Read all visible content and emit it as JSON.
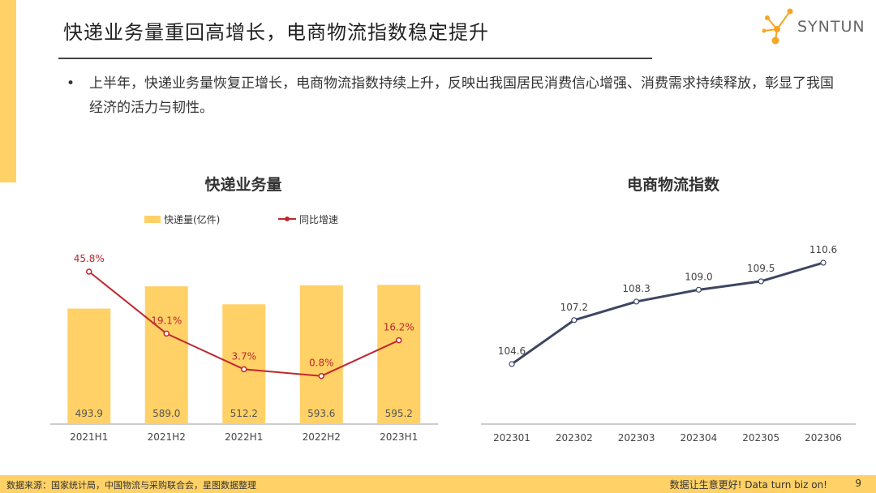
{
  "header": {
    "title": "快递业务量重回高增长，电商物流指数稳定提升",
    "logo_text": "SYNTUN"
  },
  "bullet": {
    "dot": "•",
    "text": "上半年，快递业务量恢复正增长，电商物流指数持续上升，反映出我国居民消费信心增强、消费需求持续释放，彰显了我国经济的活力与韧性。"
  },
  "colors": {
    "accent": "#FFD166",
    "bar": "#FFD166",
    "line_red": "#C0272D",
    "line_navy": "#3D4563"
  },
  "chart_data": [
    {
      "type": "bar",
      "title": "快递业务量",
      "categories": [
        "2021H1",
        "2021H2",
        "2022H1",
        "2022H2",
        "2023H1"
      ],
      "legend_position": "top",
      "series": [
        {
          "name": "快递量(亿件)",
          "type": "bar",
          "values": [
            493.9,
            589.0,
            512.2,
            593.6,
            595.2
          ],
          "labels": [
            "493.9",
            "589.0",
            "512.2",
            "593.6",
            "595.2"
          ]
        },
        {
          "name": "同比增速",
          "type": "line",
          "values": [
            45.8,
            19.1,
            3.7,
            0.8,
            16.2
          ],
          "labels": [
            "45.8%",
            "19.1%",
            "3.7%",
            "0.8%",
            "16.2%"
          ]
        }
      ],
      "grid": false
    },
    {
      "type": "line",
      "title": "电商物流指数",
      "categories": [
        "202301",
        "202302",
        "202303",
        "202304",
        "202305",
        "202306"
      ],
      "series": [
        {
          "values": [
            104.6,
            107.2,
            108.3,
            109.0,
            109.5,
            110.6
          ],
          "labels": [
            "104.6",
            "107.2",
            "108.3",
            "109.0",
            "109.5",
            "110.6"
          ]
        }
      ],
      "grid": false
    }
  ],
  "footer": {
    "source": "数据来源：国家统计局，中国物流与采购联合会，星图数据整理",
    "slogan": "数据让生意更好! Data turn biz on!",
    "page_number": "9"
  }
}
